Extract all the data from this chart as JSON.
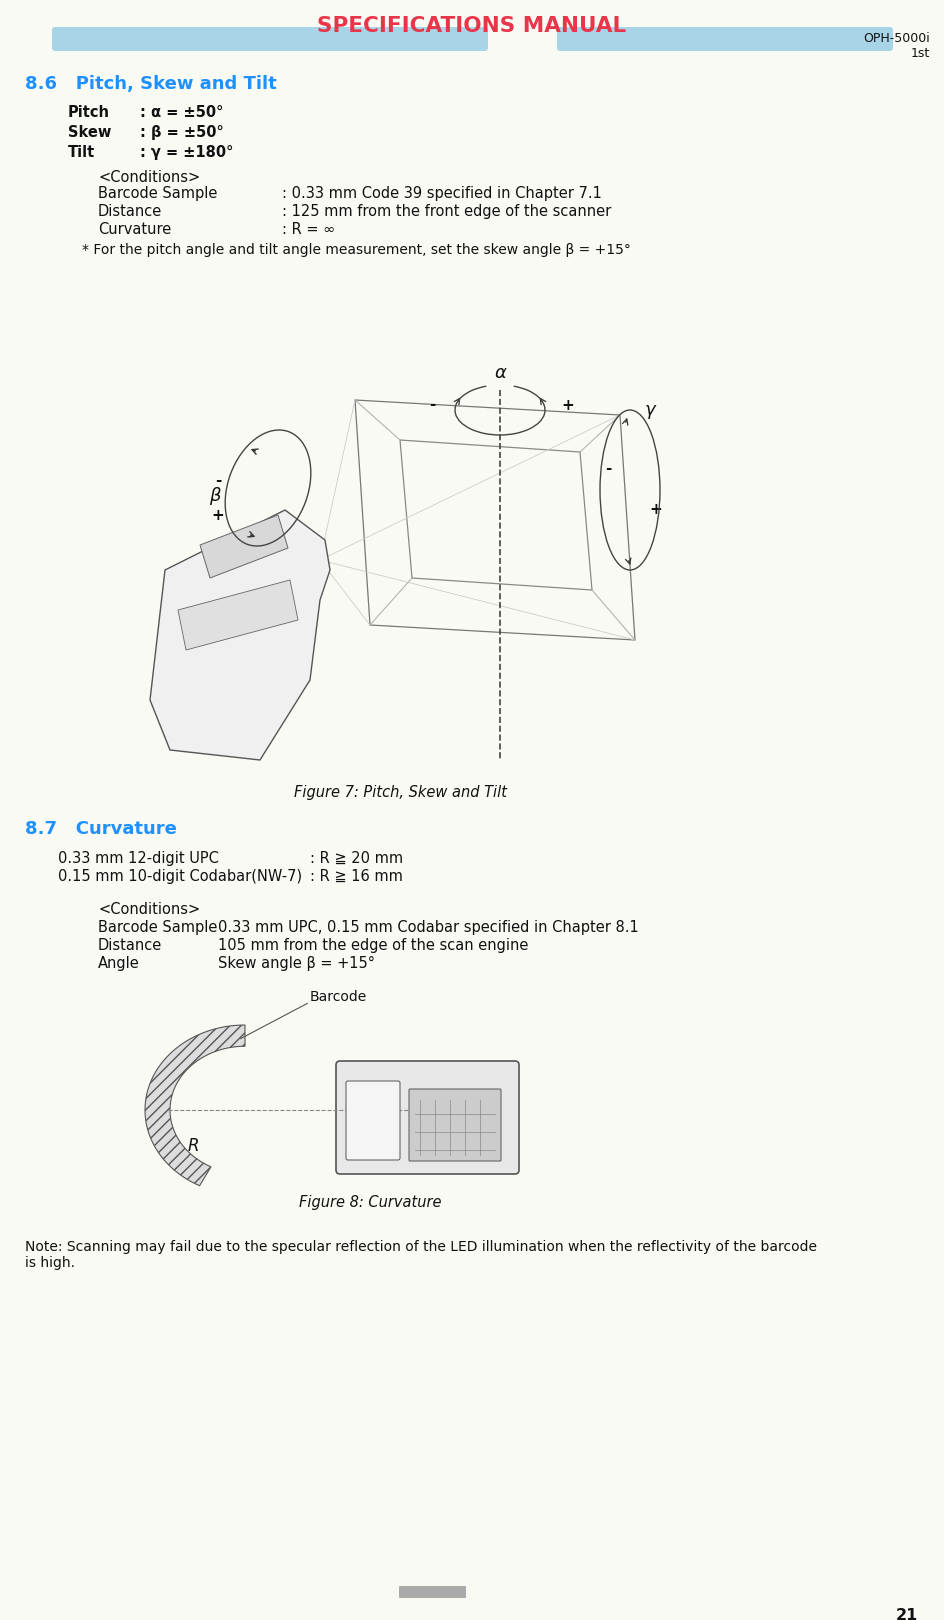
{
  "bg_color": "#FAFAF5",
  "header_title": "SPECIFICATIONS MANUAL",
  "header_title_color": "#E8354A",
  "header_bar_color": "#A8D4E8",
  "page_num": "21",
  "section_86_title": "8.6   Pitch, Skew and Tilt",
  "section_86_color": "#1E90FF",
  "pitch_value": ": α = ±50°",
  "skew_value": ": β = ±50°",
  "tilt_value": ": γ = ±180°",
  "conditions_label": "<Conditions>",
  "barcode_sample_label": "Barcode Sample",
  "barcode_sample_value": ": 0.33 mm Code 39 specified in Chapter 7.1",
  "distance_label": "Distance",
  "distance_value": ": 125 mm from the front edge of the scanner",
  "curvature_label": "Curvature",
  "curvature_value": ": R = ∞",
  "note_pitch": "* For the pitch angle and tilt angle measurement, set the skew angle β = +15°",
  "fig7_caption": "Figure 7: Pitch, Skew and Tilt",
  "section_87_title": "8.7   Curvature",
  "section_87_color": "#1E90FF",
  "upc_line1": "0.33 mm 12-digit UPC",
  "upc_line1b": ": R ≧ 20 mm",
  "codabar_line1": "0.15 mm 10-digit Codabar(NW-7)",
  "codabar_line1b": ": R ≧ 16 mm",
  "conditions2_label": "<Conditions>",
  "bs2_label": "Barcode Sample",
  "bs2_value": "0.33 mm UPC, 0.15 mm Codabar specified in Chapter 8.1",
  "dist2_label": "Distance",
  "dist2_value": "105 mm from the edge of the scan engine",
  "angle2_label": "Angle",
  "angle2_value": "Skew angle β = +15°",
  "barcode_label": "Barcode",
  "fig8_caption": "Figure 8: Curvature",
  "note_text": "Note: Scanning may fail due to the specular reflection of the LED illumination when the reflectivity of the barcode\nis high.",
  "text_color": "#111111",
  "body_font_size": 10.5
}
